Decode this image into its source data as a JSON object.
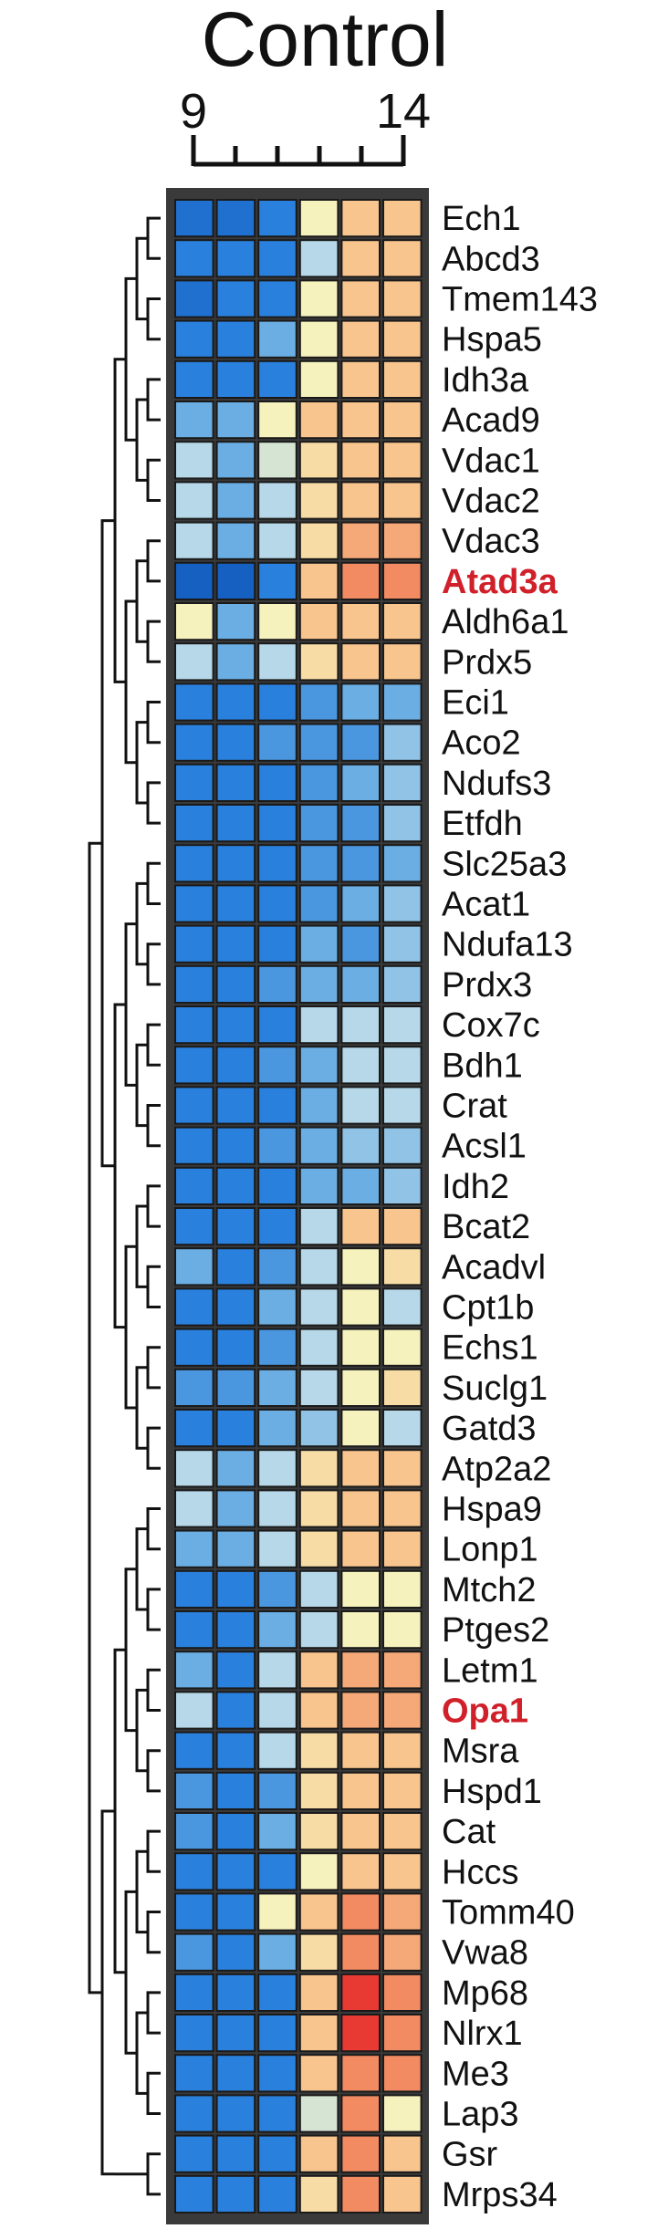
{
  "chart_data": {
    "type": "heatmap",
    "title": "Control",
    "scale": {
      "start_label": "9",
      "end_label": "14",
      "ticks": 6
    },
    "columns": 6,
    "rows": [
      "Ech1",
      "Abcd3",
      "Tmem143",
      "Hspa5",
      "Idh3a",
      "Acad9",
      "Vdac1",
      "Vdac2",
      "Vdac3",
      "Atad3a",
      "Aldh6a1",
      "Prdx5",
      "Eci1",
      "Aco2",
      "Ndufs3",
      "Etfdh",
      "Slc25a3",
      "Acat1",
      "Ndufa13",
      "Prdx3",
      "Cox7c",
      "Bdh1",
      "Crat",
      "Acsl1",
      "Idh2",
      "Bcat2",
      "Acadvl",
      "Cpt1b",
      "Echs1",
      "Suclg1",
      "Gatd3",
      "Atp2a2",
      "Hspa9",
      "Lonp1",
      "Mtch2",
      "Ptges2",
      "Letm1",
      "Opa1",
      "Msra",
      "Hspd1",
      "Cat",
      "Hccs",
      "Tomm40",
      "Vwa8",
      "Mp68",
      "Nlrx1",
      "Me3",
      "Lap3",
      "Gsr",
      "Mrps34"
    ],
    "highlighted_rows": [
      "Atad3a",
      "Opa1"
    ],
    "highlight_color": "#d0202a",
    "color_scale": [
      "#1560c0",
      "#2a80dd",
      "#6aaee3",
      "#b6d8e8",
      "#f6f2bd",
      "#f8c58e",
      "#f28a62",
      "#e83a32"
    ],
    "values": [
      [
        0.5,
        0.5,
        1,
        4,
        5,
        5
      ],
      [
        1,
        1,
        1,
        3,
        5,
        5
      ],
      [
        0.5,
        1,
        1,
        4,
        5,
        5
      ],
      [
        1,
        1,
        2,
        4,
        5,
        5
      ],
      [
        1,
        1,
        1,
        4,
        5,
        5
      ],
      [
        2,
        2,
        4,
        5,
        5,
        5
      ],
      [
        3,
        2,
        3.5,
        4.5,
        5,
        5
      ],
      [
        3,
        2,
        3,
        4.5,
        5,
        5
      ],
      [
        3,
        2,
        3,
        4.5,
        5.5,
        5.5
      ],
      [
        0,
        0,
        1,
        5,
        6,
        6
      ],
      [
        4,
        2,
        4,
        5,
        5,
        5
      ],
      [
        3,
        2,
        3,
        4.5,
        5,
        5
      ],
      [
        1,
        1,
        1,
        1.5,
        2,
        2
      ],
      [
        1,
        1,
        1.5,
        1.5,
        1.5,
        2.5
      ],
      [
        1,
        1,
        1,
        1.5,
        2,
        2.5
      ],
      [
        1,
        1,
        1,
        1.5,
        1.5,
        2.5
      ],
      [
        1,
        1,
        1,
        1.5,
        1.5,
        2
      ],
      [
        1,
        1,
        1,
        1.5,
        2,
        2.5
      ],
      [
        1,
        1,
        1,
        2,
        1.5,
        2.5
      ],
      [
        1,
        1,
        1.5,
        2,
        2,
        2.5
      ],
      [
        1,
        1,
        1,
        3,
        3,
        3
      ],
      [
        1,
        1,
        1.5,
        2,
        3,
        3
      ],
      [
        1,
        1,
        1,
        2,
        3,
        3
      ],
      [
        1,
        1,
        1.5,
        2,
        2.5,
        2.5
      ],
      [
        1,
        1,
        1,
        2,
        2,
        2.5
      ],
      [
        1,
        1,
        1,
        3,
        5,
        5
      ],
      [
        2,
        1,
        1.5,
        3,
        4,
        4.5
      ],
      [
        1,
        1,
        2,
        3,
        4,
        3
      ],
      [
        1,
        1,
        1.5,
        3,
        4,
        4
      ],
      [
        1.5,
        1.5,
        2,
        3,
        4,
        4.5
      ],
      [
        1,
        1,
        2,
        2.5,
        4,
        3
      ],
      [
        3,
        2,
        3,
        4.5,
        5,
        5
      ],
      [
        3,
        2,
        3,
        4.5,
        5,
        5
      ],
      [
        2,
        2,
        3,
        4.5,
        5,
        5
      ],
      [
        1,
        1,
        1.5,
        3,
        4,
        4
      ],
      [
        1,
        1,
        2,
        3,
        4,
        4
      ],
      [
        2,
        1,
        3,
        5,
        5.5,
        5.5
      ],
      [
        3,
        1,
        3,
        5,
        5.5,
        5.5
      ],
      [
        1,
        1,
        3,
        4.5,
        5,
        5
      ],
      [
        1.5,
        1,
        1.5,
        4.5,
        5,
        5
      ],
      [
        1.5,
        1,
        2,
        4.5,
        5,
        5
      ],
      [
        1,
        1,
        1,
        4,
        5,
        5
      ],
      [
        1,
        1,
        4,
        5,
        6,
        5.5
      ],
      [
        1.5,
        1,
        2,
        4.5,
        6,
        5.5
      ],
      [
        1,
        1,
        1,
        5,
        7,
        6
      ],
      [
        1,
        1,
        1,
        5,
        7,
        6
      ],
      [
        1,
        1,
        1,
        5,
        6,
        6
      ],
      [
        1,
        1,
        1,
        3.5,
        6,
        4
      ],
      [
        1,
        1,
        1,
        5,
        6,
        5
      ],
      [
        1,
        1,
        1,
        4.5,
        6,
        5
      ]
    ]
  }
}
